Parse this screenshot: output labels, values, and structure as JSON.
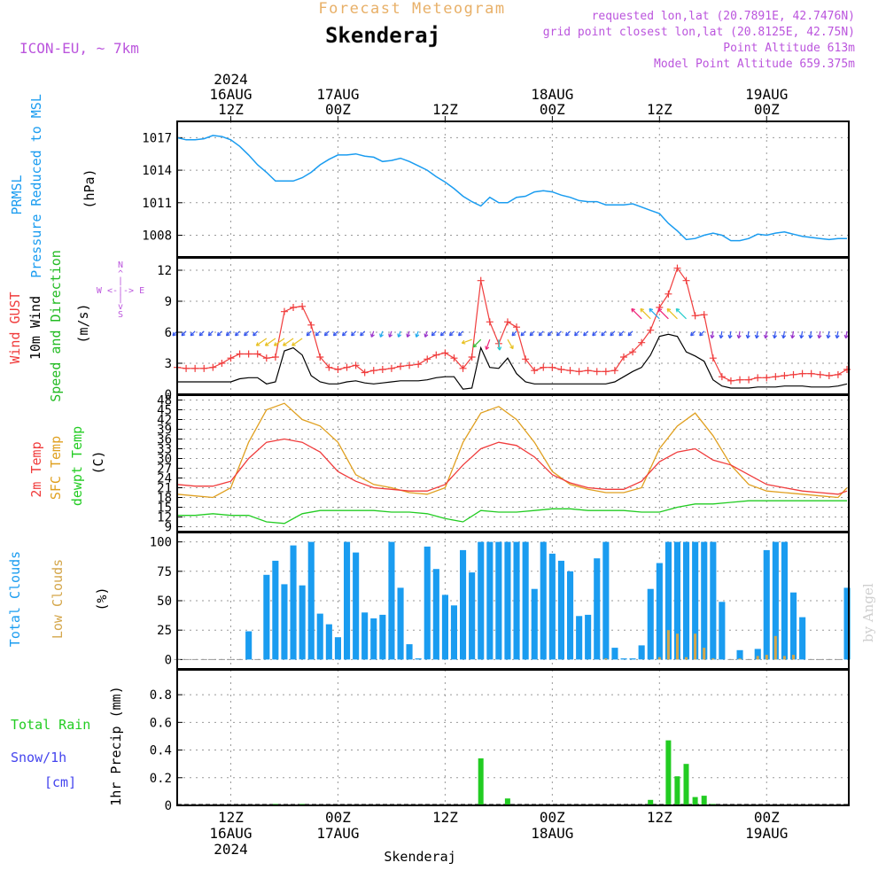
{
  "header": {
    "product": "Forecast Meteogram",
    "location": "Skenderaj",
    "model": "ICON-EU, ~ 7km",
    "requested": "requested lon,lat (20.7891E, 42.7476N)",
    "gridpoint": "grid point closest lon,lat (20.8125E, 42.75N)",
    "point_alt": "Point Altitude 613m",
    "model_alt": "Model Point Altitude 659.375m",
    "footer_location": "Skenderaj",
    "watermark": "by Angel"
  },
  "colors": {
    "pressure": "#1a9cf0",
    "gust": "#f03c3c",
    "wind": "#000000",
    "direction": "#22bb22",
    "temp2m": "#f03c3c",
    "sfc": "#e0a020",
    "dewpt": "#22cc22",
    "total_clouds": "#1a9cf0",
    "low_clouds": "#d4a64a",
    "rain": "#22cc22",
    "snow": "#4444ee",
    "meta": "#bb55dd",
    "title_orange": "#e8b068"
  },
  "time_axis": {
    "top_labels": [
      {
        "t": 6,
        "lines": [
          "2024",
          "16AUG",
          "12Z"
        ]
      },
      {
        "t": 18,
        "lines": [
          "17AUG",
          "00Z"
        ]
      },
      {
        "t": 30,
        "lines": [
          "12Z"
        ]
      },
      {
        "t": 42,
        "lines": [
          "18AUG",
          "00Z"
        ]
      },
      {
        "t": 54,
        "lines": [
          "12Z"
        ]
      },
      {
        "t": 66,
        "lines": [
          "19AUG",
          "00Z"
        ]
      }
    ],
    "bottom_labels": [
      {
        "t": 6,
        "lines": [
          "12Z",
          "16AUG",
          "2024"
        ]
      },
      {
        "t": 18,
        "lines": [
          "00Z",
          "17AUG"
        ]
      },
      {
        "t": 30,
        "lines": [
          "12Z"
        ]
      },
      {
        "t": 42,
        "lines": [
          "00Z",
          "18AUG"
        ]
      },
      {
        "t": 54,
        "lines": [
          "12Z"
        ]
      },
      {
        "t": 66,
        "lines": [
          "00Z",
          "19AUG"
        ]
      }
    ]
  },
  "chart_data": [
    {
      "type": "line",
      "name": "pressure",
      "labels": [
        "PRMSL",
        "Pressure Reduced to MSL",
        "(hPa)"
      ],
      "ylim": [
        1006,
        1018.5
      ],
      "yticks": [
        1008,
        1011,
        1014,
        1017
      ],
      "x": [
        0,
        1,
        2,
        3,
        4,
        5,
        6,
        7,
        8,
        9,
        10,
        11,
        12,
        13,
        14,
        15,
        16,
        17,
        18,
        19,
        20,
        21,
        22,
        23,
        24,
        25,
        26,
        27,
        28,
        29,
        30,
        31,
        32,
        33,
        34,
        35,
        36,
        37,
        38,
        39,
        40,
        41,
        42,
        43,
        44,
        45,
        46,
        47,
        48,
        49,
        50,
        51,
        52,
        53,
        54,
        55,
        56,
        57,
        58,
        59,
        60,
        61,
        62,
        63,
        64,
        65,
        66,
        67,
        68,
        69,
        70,
        71,
        72,
        73,
        74,
        75
      ],
      "values": [
        1017,
        1016.8,
        1016.8,
        1016.9,
        1017.2,
        1017.1,
        1016.8,
        1016.2,
        1015.4,
        1014.5,
        1013.8,
        1013,
        1013,
        1013,
        1013.3,
        1013.8,
        1014.5,
        1015,
        1015.4,
        1015.4,
        1015.5,
        1015.3,
        1015.2,
        1014.8,
        1014.9,
        1015.1,
        1014.8,
        1014.4,
        1014,
        1013.4,
        1012.9,
        1012.3,
        1011.6,
        1011.1,
        1010.7,
        1011.5,
        1011,
        1011,
        1011.5,
        1011.6,
        1012,
        1012.1,
        1012,
        1011.7,
        1011.5,
        1011.2,
        1011.1,
        1011.1,
        1010.8,
        1010.8,
        1010.8,
        1010.9,
        1010.6,
        1010.3,
        1010,
        1009.1,
        1008.4,
        1007.6,
        1007.7,
        1008,
        1008.2,
        1008,
        1007.5,
        1007.5,
        1007.7,
        1008.1,
        1008,
        1008.2,
        1008.3,
        1008.1,
        1007.9,
        1007.8,
        1007.7,
        1007.6,
        1007.7,
        1007.7
      ]
    },
    {
      "type": "line",
      "name": "wind",
      "labels": [
        "Wind GUST",
        "10m Wind",
        "Speed and Direction",
        "(m/s)"
      ],
      "compass": [
        "N",
        "^",
        "|",
        "W <-|-> E",
        "|",
        "v",
        "S"
      ],
      "ylim": [
        0,
        13.2
      ],
      "yticks": [
        0,
        3,
        6,
        9,
        12
      ],
      "series": [
        {
          "name": "Wind GUST",
          "x": [
            0,
            1,
            2,
            3,
            4,
            5,
            6,
            7,
            8,
            9,
            10,
            11,
            12,
            13,
            14,
            15,
            16,
            17,
            18,
            19,
            20,
            21,
            22,
            23,
            24,
            25,
            26,
            27,
            28,
            29,
            30,
            31,
            32,
            33,
            34,
            35,
            36,
            37,
            38,
            39,
            40,
            41,
            42,
            43,
            44,
            45,
            46,
            47,
            48,
            49,
            50,
            51,
            52,
            53,
            54,
            55,
            56,
            57,
            58,
            59,
            60,
            61,
            62,
            63,
            64,
            65,
            66,
            67,
            68,
            69,
            70,
            71,
            72,
            73,
            74,
            75
          ],
          "values": [
            2.6,
            2.5,
            2.5,
            2.5,
            2.6,
            3.0,
            3.5,
            3.9,
            3.9,
            3.9,
            3.5,
            3.6,
            8.0,
            8.4,
            8.5,
            6.7,
            3.6,
            2.6,
            2.4,
            2.6,
            2.8,
            2.1,
            2.3,
            2.4,
            2.5,
            2.7,
            2.8,
            2.9,
            3.4,
            3.8,
            4.0,
            3.5,
            2.5,
            3.6,
            11.0,
            7.0,
            4.9,
            7.0,
            6.5,
            3.4,
            2.3,
            2.6,
            2.6,
            2.4,
            2.3,
            2.2,
            2.3,
            2.2,
            2.2,
            2.3,
            3.6,
            4.1,
            5.0,
            6.2,
            8.4,
            9.7,
            12.2,
            11.0,
            7.6,
            7.7,
            3.5,
            1.7,
            1.3,
            1.4,
            1.4,
            1.6,
            1.6,
            1.7,
            1.8,
            1.9,
            2.0,
            2.0,
            1.9,
            1.8,
            1.9,
            2.4
          ]
        },
        {
          "name": "10m Wind",
          "x": [
            0,
            1,
            2,
            3,
            4,
            5,
            6,
            7,
            8,
            9,
            10,
            11,
            12,
            13,
            14,
            15,
            16,
            17,
            18,
            19,
            20,
            21,
            22,
            23,
            24,
            25,
            26,
            27,
            28,
            29,
            30,
            31,
            32,
            33,
            34,
            35,
            36,
            37,
            38,
            39,
            40,
            41,
            42,
            43,
            44,
            45,
            46,
            47,
            48,
            49,
            50,
            51,
            52,
            53,
            54,
            55,
            56,
            57,
            58,
            59,
            60,
            61,
            62,
            63,
            64,
            65,
            66,
            67,
            68,
            69,
            70,
            71,
            72,
            73,
            74,
            75
          ],
          "values": [
            1.2,
            1.2,
            1.2,
            1.2,
            1.2,
            1.2,
            1.2,
            1.5,
            1.6,
            1.6,
            1.0,
            1.2,
            4.2,
            4.5,
            3.8,
            1.8,
            1.2,
            1.0,
            1.0,
            1.2,
            1.3,
            1.1,
            1.0,
            1.1,
            1.2,
            1.3,
            1.3,
            1.3,
            1.4,
            1.6,
            1.7,
            1.7,
            0.5,
            0.6,
            4.5,
            2.6,
            2.5,
            3.5,
            2.0,
            1.2,
            1.0,
            1.0,
            1.0,
            1.0,
            1.0,
            1.0,
            1.0,
            1.0,
            1.0,
            1.2,
            1.7,
            2.2,
            2.6,
            3.8,
            5.6,
            5.8,
            5.6,
            4.1,
            3.7,
            3.2,
            1.4,
            0.8,
            0.6,
            0.6,
            0.6,
            0.7,
            0.7,
            0.7,
            0.8,
            0.8,
            0.8,
            0.7,
            0.7,
            0.7,
            0.8,
            1.0
          ]
        }
      ]
    },
    {
      "type": "line",
      "name": "temperature",
      "labels": [
        "2m Temp",
        "SFC Temp",
        "dewpt Temp",
        "(C)"
      ],
      "ylim": [
        7.5,
        49.5
      ],
      "yticks": [
        9,
        12,
        15,
        18,
        21,
        24,
        27,
        30,
        33,
        36,
        39,
        42,
        45,
        48
      ],
      "series": [
        {
          "name": "2m Temp",
          "x": [
            0,
            2,
            4,
            6,
            8,
            10,
            12,
            14,
            16,
            18,
            20,
            22,
            24,
            26,
            28,
            30,
            32,
            34,
            36,
            38,
            40,
            42,
            44,
            46,
            48,
            50,
            52,
            54,
            56,
            58,
            60,
            62,
            64,
            66,
            68,
            70,
            72,
            74,
            75
          ],
          "values": [
            22,
            21.5,
            21.5,
            23,
            30,
            35,
            36,
            35,
            32,
            26,
            23,
            21,
            20.5,
            20,
            20,
            22,
            28,
            33,
            35,
            34,
            30.5,
            25,
            22.5,
            21,
            20.5,
            20.5,
            23,
            29,
            32,
            33,
            29.5,
            28,
            25,
            22,
            21,
            20,
            19.5,
            19,
            20
          ]
        },
        {
          "name": "SFC Temp",
          "x": [
            0,
            2,
            4,
            6,
            8,
            10,
            12,
            14,
            16,
            18,
            20,
            22,
            24,
            26,
            28,
            30,
            32,
            34,
            36,
            38,
            40,
            42,
            44,
            46,
            48,
            50,
            52,
            54,
            56,
            58,
            60,
            62,
            64,
            66,
            68,
            70,
            72,
            74,
            75
          ],
          "values": [
            19,
            18.5,
            18,
            21,
            35,
            45,
            47,
            42,
            40,
            35,
            25,
            22,
            21,
            19.5,
            19,
            21,
            35,
            44,
            46,
            42,
            35,
            26,
            22,
            20.5,
            19.5,
            19.5,
            21,
            33,
            40,
            44,
            37,
            28,
            22,
            20,
            19.5,
            19,
            18.5,
            18,
            21
          ]
        },
        {
          "name": "dewpt Temp",
          "x": [
            0,
            2,
            4,
            6,
            8,
            10,
            12,
            14,
            16,
            18,
            20,
            22,
            24,
            26,
            28,
            30,
            32,
            34,
            36,
            38,
            40,
            42,
            44,
            46,
            48,
            50,
            52,
            54,
            56,
            58,
            60,
            62,
            64,
            66,
            68,
            70,
            72,
            74,
            75
          ],
          "values": [
            12.5,
            12.5,
            13,
            12.5,
            12.5,
            10.5,
            10,
            13,
            14,
            14,
            14,
            14,
            13.5,
            13.5,
            13,
            11.5,
            10.5,
            14,
            13.5,
            13.5,
            14,
            14.5,
            14.5,
            14,
            14,
            14,
            13.5,
            13.5,
            15,
            16,
            16,
            16.5,
            17,
            17,
            17,
            17,
            17,
            17,
            17
          ]
        }
      ]
    },
    {
      "type": "bar",
      "name": "clouds",
      "labels": [
        "Total Clouds",
        "Low Clouds",
        "(%)"
      ],
      "ylim": [
        -8,
        108
      ],
      "yticks": [
        0,
        25,
        50,
        75,
        100
      ],
      "series": [
        {
          "name": "Total Clouds",
          "x": [
            0,
            1,
            2,
            3,
            4,
            5,
            6,
            7,
            8,
            9,
            10,
            11,
            12,
            13,
            14,
            15,
            16,
            17,
            18,
            19,
            20,
            21,
            22,
            23,
            24,
            25,
            26,
            27,
            28,
            29,
            30,
            31,
            32,
            33,
            34,
            35,
            36,
            37,
            38,
            39,
            40,
            41,
            42,
            43,
            44,
            45,
            46,
            47,
            48,
            49,
            50,
            51,
            52,
            53,
            54,
            55,
            56,
            57,
            58,
            59,
            60,
            61,
            62,
            63,
            64,
            65,
            66,
            67,
            68,
            69,
            70,
            71,
            72,
            73,
            74,
            75
          ],
          "values": [
            0,
            0,
            0,
            0,
            0,
            0,
            0,
            0,
            24,
            0,
            72,
            84,
            64,
            97,
            63,
            100,
            39,
            30,
            19,
            100,
            91,
            40,
            35,
            38,
            100,
            61,
            13,
            1,
            96,
            77,
            55,
            46,
            93,
            74,
            100,
            100,
            100,
            100,
            100,
            100,
            60,
            100,
            90,
            84,
            75,
            37,
            38,
            86,
            100,
            10,
            1,
            1,
            12,
            60,
            82,
            100,
            100,
            100,
            100,
            100,
            100,
            49,
            0,
            8,
            0,
            9,
            93,
            100,
            100,
            57,
            36,
            0,
            0,
            0,
            0,
            61
          ]
        },
        {
          "name": "Low Clouds",
          "x": [
            48,
            54,
            55,
            56,
            57,
            58,
            59,
            60,
            61,
            62,
            63,
            64,
            65,
            66,
            67,
            68,
            69
          ],
          "values": [
            1,
            2,
            25,
            22,
            2,
            22,
            10,
            1,
            0,
            0,
            1,
            0,
            3,
            4,
            20,
            3,
            4
          ]
        }
      ]
    },
    {
      "type": "bar",
      "name": "precip",
      "labels": [
        "Total Rain",
        "Snow/1h",
        "[cm]",
        "1hr Precip (mm)"
      ],
      "ylim": [
        0,
        0.98
      ],
      "yticks": [
        0,
        0.2,
        0.4,
        0.6,
        0.8
      ],
      "x": [
        11,
        14,
        34,
        37,
        53,
        55,
        56,
        57,
        58,
        59,
        60
      ],
      "values": [
        0.01,
        0.01,
        0.34,
        0.05,
        0.04,
        0.47,
        0.21,
        0.3,
        0.06,
        0.07,
        0.01
      ]
    }
  ]
}
